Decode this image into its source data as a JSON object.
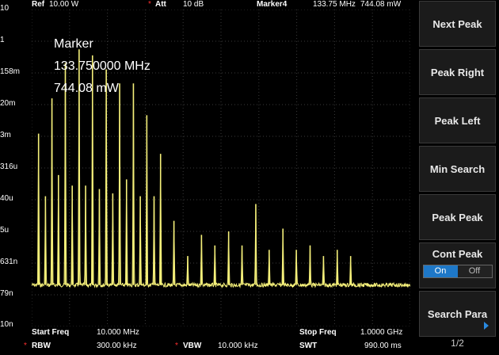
{
  "topbar": {
    "ref_label": "Ref",
    "ref_value": "10.00 W",
    "att_star": "*",
    "att_label": "Att",
    "att_value": "10 dB",
    "marker_label": "Marker4",
    "marker_freq": "133.75 MHz",
    "marker_power": "744.08 mW"
  },
  "marker_box": {
    "title": "Marker",
    "freq": "133.750000 MHz",
    "power": "744.08 mW"
  },
  "y_ticks": [
    "10",
    "1",
    "158m",
    "20m",
    "3m",
    "316u",
    "40u",
    "5u",
    "631n",
    "79n",
    "10n"
  ],
  "bottombar": {
    "start_label": "Start Freq",
    "start_value": "10.000 MHz",
    "stop_label": "Stop Freq",
    "stop_value": "1.0000 GHz",
    "rbw_star": "*",
    "rbw_label": "RBW",
    "rbw_value": "300.00 kHz",
    "vbw_star": "*",
    "vbw_label": "VBW",
    "vbw_value": "10.000 kHz",
    "swt_label": "SWT",
    "swt_value": "990.00 ms"
  },
  "softkeys": {
    "next_peak": "Next Peak",
    "peak_right": "Peak Right",
    "peak_left": "Peak Left",
    "min_search": "Min Search",
    "peak_peak": "Peak Peak",
    "cont_peak": "Cont Peak",
    "cont_on": "On",
    "cont_off": "Off",
    "search_para": "Search Para",
    "page_indicator": "1/2"
  },
  "chart_data": {
    "type": "line",
    "xlim_mhz": [
      10,
      1000
    ],
    "y_scale": "log",
    "ylim_watts": [
      1e-08,
      10
    ],
    "noise_floor_watts": 1.5e-07,
    "grid": true,
    "peaks": [
      {
        "freq_mhz": 28,
        "watts": 0.003
      },
      {
        "freq_mhz": 46,
        "watts": 5e-05
      },
      {
        "freq_mhz": 63,
        "watts": 0.03
      },
      {
        "freq_mhz": 80,
        "watts": 0.0002
      },
      {
        "freq_mhz": 98,
        "watts": 0.3
      },
      {
        "freq_mhz": 116,
        "watts": 0.0001
      },
      {
        "freq_mhz": 134,
        "watts": 0.74
      },
      {
        "freq_mhz": 151,
        "watts": 0.0001
      },
      {
        "freq_mhz": 169,
        "watts": 0.5
      },
      {
        "freq_mhz": 187,
        "watts": 8e-05
      },
      {
        "freq_mhz": 205,
        "watts": 0.2
      },
      {
        "freq_mhz": 222,
        "watts": 6e-05
      },
      {
        "freq_mhz": 240,
        "watts": 0.08
      },
      {
        "freq_mhz": 258,
        "watts": 0.00015
      },
      {
        "freq_mhz": 276,
        "watts": 0.08
      },
      {
        "freq_mhz": 294,
        "watts": 5e-05
      },
      {
        "freq_mhz": 311,
        "watts": 0.01
      },
      {
        "freq_mhz": 330,
        "watts": 5e-05
      },
      {
        "freq_mhz": 347,
        "watts": 0.0008
      },
      {
        "freq_mhz": 382,
        "watts": 1e-05
      },
      {
        "freq_mhz": 418,
        "watts": 1e-06
      },
      {
        "freq_mhz": 454,
        "watts": 4e-06
      },
      {
        "freq_mhz": 489,
        "watts": 2e-06
      },
      {
        "freq_mhz": 525,
        "watts": 5e-06
      },
      {
        "freq_mhz": 560,
        "watts": 2e-06
      },
      {
        "freq_mhz": 596,
        "watts": 3e-05
      },
      {
        "freq_mhz": 631,
        "watts": 1.5e-06
      },
      {
        "freq_mhz": 667,
        "watts": 6e-06
      },
      {
        "freq_mhz": 702,
        "watts": 1.5e-06
      },
      {
        "freq_mhz": 738,
        "watts": 2e-06
      },
      {
        "freq_mhz": 773,
        "watts": 1e-06
      },
      {
        "freq_mhz": 809,
        "watts": 1.5e-06
      },
      {
        "freq_mhz": 844,
        "watts": 1e-06
      }
    ]
  },
  "colors": {
    "trace": "#f5f07a",
    "grid": "#3a3a3a",
    "accent_red": "#ff3030",
    "toggle_on": "#1e78c8"
  }
}
